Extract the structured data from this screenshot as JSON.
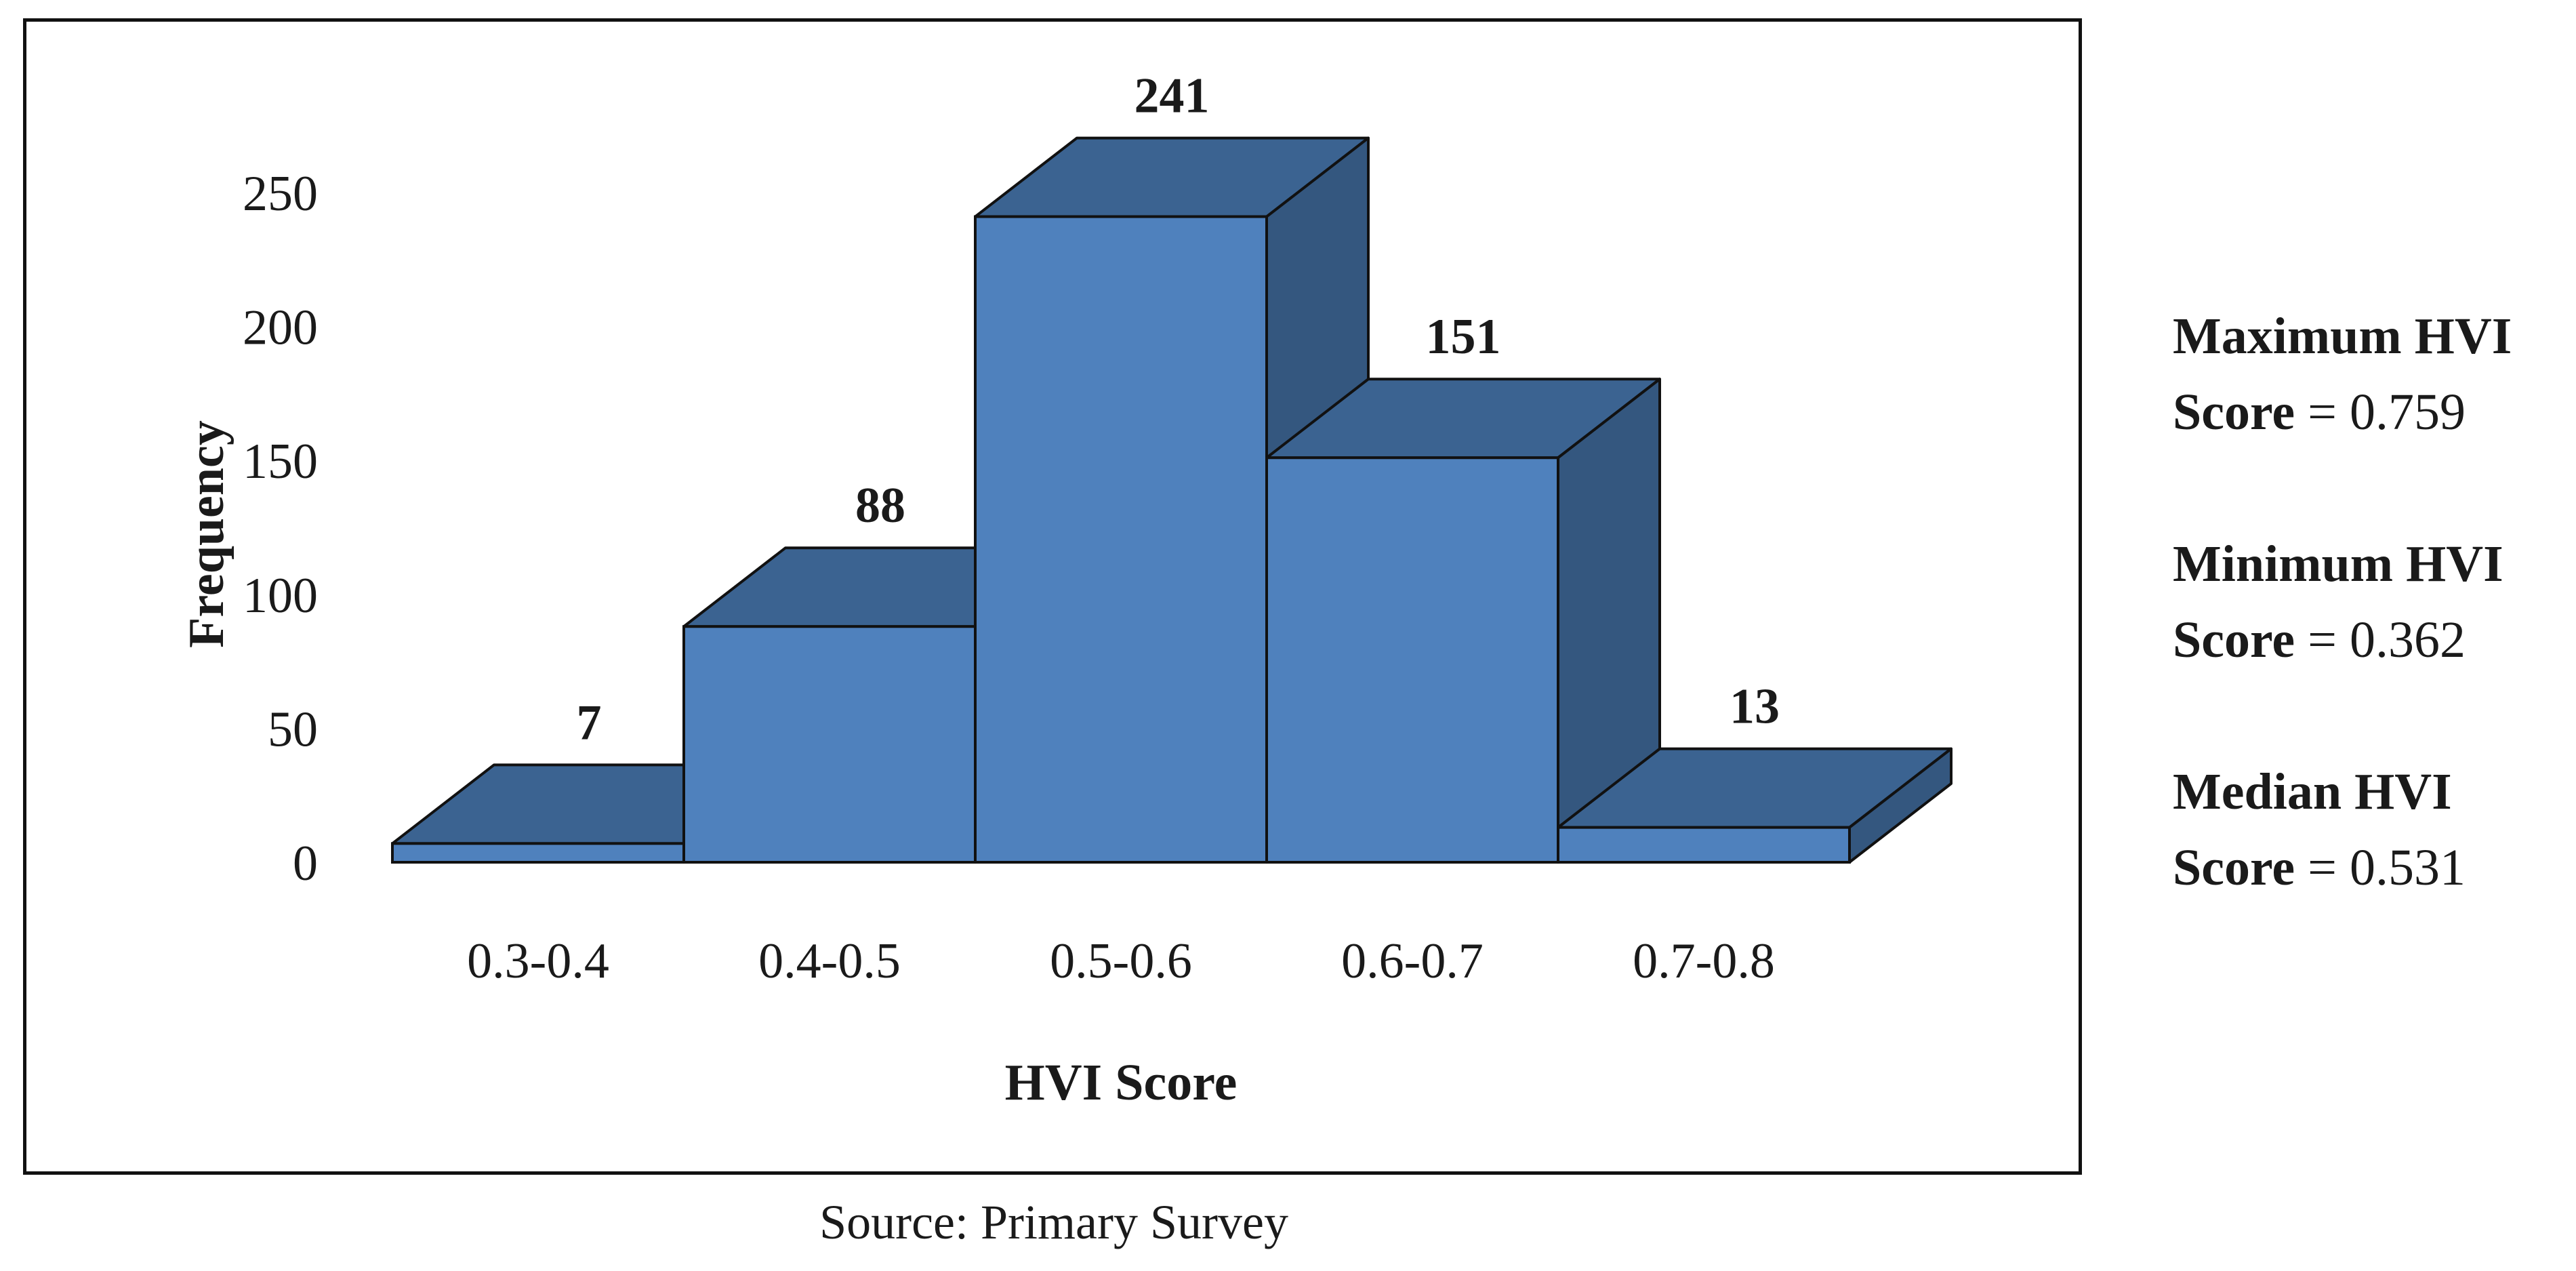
{
  "chart_data": {
    "type": "bar",
    "style": "3d-histogram",
    "categories": [
      "0.3-0.4",
      "0.4-0.5",
      "0.5-0.6",
      "0.6-0.7",
      "0.7-0.8"
    ],
    "values": [
      7,
      88,
      241,
      151,
      13
    ],
    "data_labels": [
      "7",
      "88",
      "241",
      "151",
      "13"
    ],
    "xlabel": "HVI Score",
    "ylabel": "Frequency",
    "ylim": [
      0,
      250
    ],
    "yticks": [
      "0",
      "50",
      "100",
      "150",
      "200",
      "250"
    ],
    "grid": false,
    "colors": {
      "front": "#4f81bd",
      "top": "#3b6391",
      "side": "#34577f",
      "outline": "#111111"
    }
  },
  "stats": [
    {
      "label_bold": "Maximum HVI",
      "label_bold2": "Score",
      "value": " = 0.759"
    },
    {
      "label_bold": "Minimum HVI",
      "label_bold2": "Score",
      "value": " = 0.362"
    },
    {
      "label_bold": "Median HVI",
      "label_bold2": "Score",
      "value": " = 0.531"
    }
  ],
  "source": "Source: Primary Survey"
}
